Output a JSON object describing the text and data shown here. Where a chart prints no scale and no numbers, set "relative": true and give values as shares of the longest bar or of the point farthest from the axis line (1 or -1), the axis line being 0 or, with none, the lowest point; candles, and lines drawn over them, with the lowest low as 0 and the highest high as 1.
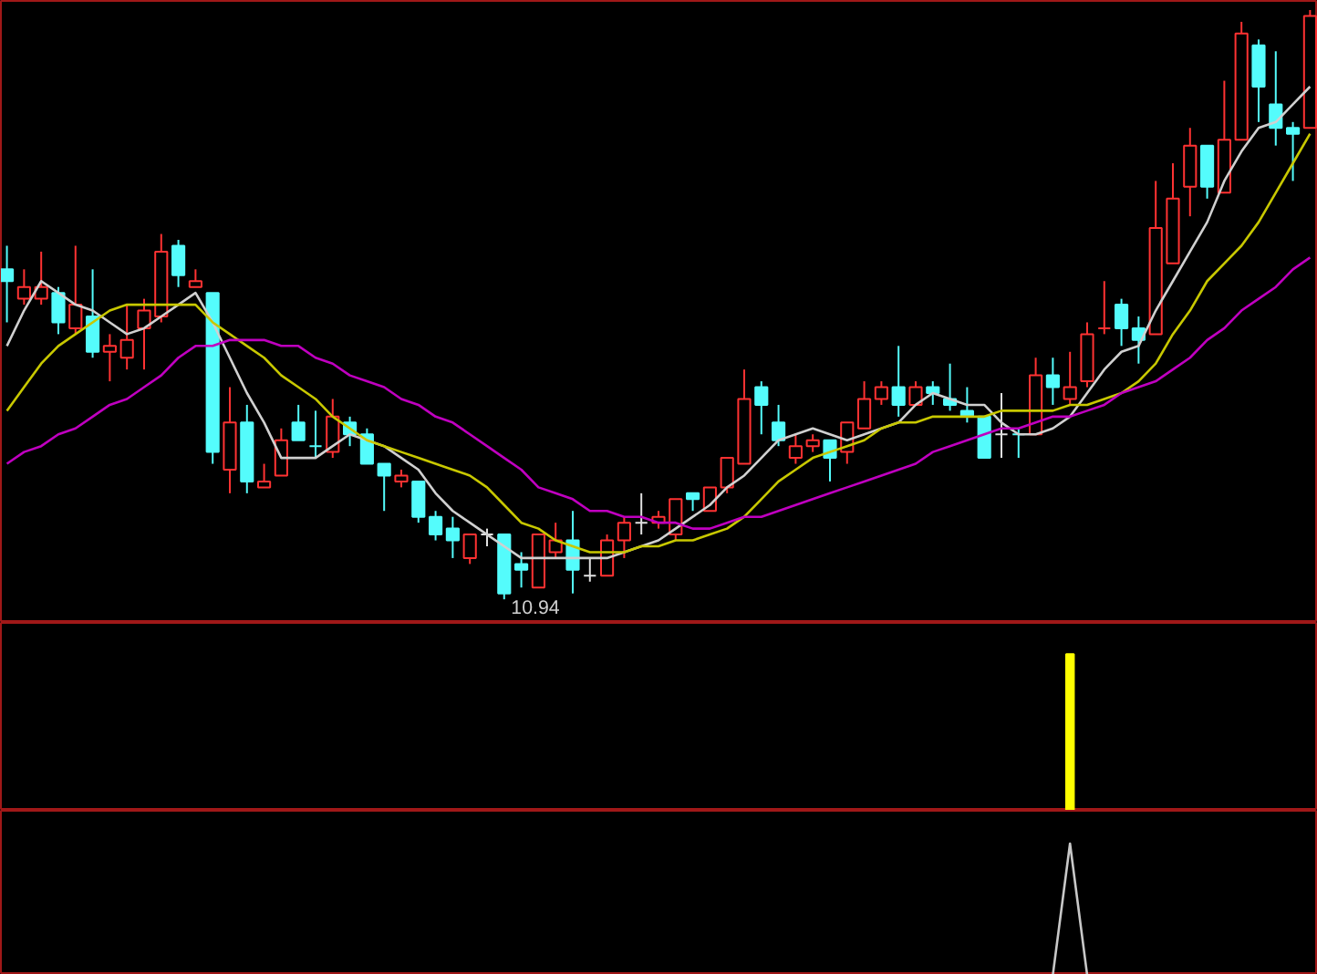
{
  "chart_data": [
    {
      "type": "candlestick",
      "relative": true,
      "colors": [
        "#54fcfc",
        "#ff3232",
        "#ff3232",
        "#54fcfc",
        "#ff3232",
        "#54fcfc",
        "#ff3232",
        "#ff3232",
        "#ff3232",
        "#ff3232",
        "#54fcfc",
        "#ff3232",
        "#54fcfc",
        "#ff3232",
        "#54fcfc",
        "#ff3232",
        "#ff3232",
        "#54fcfc",
        "#54fcfc",
        "#ff3232",
        "#54fcfc",
        "#54fcfc",
        "#54fcfc",
        "#ff3232",
        "#54fcfc",
        "#54fcfc",
        "#54fcfc",
        "#ff3232",
        "#e0e0e0",
        "#54fcfc",
        "#54fcfc",
        "#ff3232",
        "#ff3232",
        "#54fcfc",
        "#e0e0e0",
        "#ff3232",
        "#ff3232",
        "#e0e0e0",
        "#ff3232",
        "#ff3232",
        "#54fcfc",
        "#ff3232",
        "#ff3232",
        "#ff3232",
        "#54fcfc",
        "#54fcfc",
        "#ff3232",
        "#ff3232",
        "#54fcfc",
        "#ff3232",
        "#ff3232",
        "#ff3232",
        "#54fcfc",
        "#ff3232",
        "#54fcfc",
        "#54fcfc",
        "#54fcfc",
        "#54fcfc",
        "#e0e0e0",
        "#54fcfc",
        "#ff3232",
        "#54fcfc",
        "#ff3232",
        "#ff3232",
        "#ff3232",
        "#54fcfc",
        "#54fcfc",
        "#ff3232",
        "#ff3232",
        "#ff3232",
        "#54fcfc",
        "#ff3232",
        "#ff3232",
        "#54fcfc",
        "#54fcfc",
        "#54fcfc",
        "#ff3232"
      ],
      "categories": [
        null,
        null,
        null,
        null,
        null,
        null,
        null,
        null,
        null,
        null,
        null,
        null,
        null,
        null,
        null,
        null,
        null,
        null,
        null,
        null,
        null,
        null,
        null,
        null,
        null,
        null,
        null,
        null,
        null,
        null,
        null,
        null,
        null,
        null,
        null,
        null,
        null,
        null,
        null,
        null,
        null,
        null,
        null,
        null,
        null,
        null,
        null,
        null,
        null,
        null,
        null,
        null,
        null,
        null,
        null,
        null,
        null,
        null,
        null,
        null,
        null,
        null,
        null,
        null,
        null,
        null,
        null,
        null,
        null,
        null,
        null,
        null,
        null,
        null,
        null,
        null,
        null
      ],
      "ohlc": [
        [
          0.56,
          0.6,
          0.47,
          0.54
        ],
        [
          0.51,
          0.56,
          0.5,
          0.53
        ],
        [
          0.51,
          0.59,
          0.5,
          0.53
        ],
        [
          0.52,
          0.53,
          0.45,
          0.47
        ],
        [
          0.46,
          0.6,
          0.45,
          0.5
        ],
        [
          0.48,
          0.56,
          0.41,
          0.42
        ],
        [
          0.42,
          0.45,
          0.37,
          0.43
        ],
        [
          0.41,
          0.5,
          0.39,
          0.44
        ],
        [
          0.46,
          0.51,
          0.39,
          0.49
        ],
        [
          0.48,
          0.62,
          0.47,
          0.59
        ],
        [
          0.6,
          0.61,
          0.53,
          0.55
        ],
        [
          0.53,
          0.56,
          0.53,
          0.54
        ],
        [
          0.52,
          0.52,
          0.23,
          0.25
        ],
        [
          0.22,
          0.36,
          0.18,
          0.3
        ],
        [
          0.3,
          0.33,
          0.18,
          0.2
        ],
        [
          0.19,
          0.23,
          0.19,
          0.2
        ],
        [
          0.21,
          0.29,
          0.21,
          0.27
        ],
        [
          0.3,
          0.33,
          0.27,
          0.27
        ],
        [
          0.26,
          0.32,
          0.24,
          0.26
        ],
        [
          0.25,
          0.34,
          0.24,
          0.31
        ],
        [
          0.3,
          0.31,
          0.26,
          0.28
        ],
        [
          0.28,
          0.29,
          0.23,
          0.23
        ],
        [
          0.23,
          0.23,
          0.15,
          0.21
        ],
        [
          0.2,
          0.22,
          0.19,
          0.21
        ],
        [
          0.2,
          0.2,
          0.13,
          0.14
        ],
        [
          0.14,
          0.15,
          0.1,
          0.11
        ],
        [
          0.12,
          0.14,
          0.07,
          0.1
        ],
        [
          0.07,
          0.11,
          0.06,
          0.11
        ],
        [
          0.11,
          0.12,
          0.09,
          0.11
        ],
        [
          0.11,
          0.11,
          0.0,
          0.01
        ],
        [
          0.06,
          0.08,
          0.02,
          0.05
        ],
        [
          0.02,
          0.11,
          0.02,
          0.11
        ],
        [
          0.08,
          0.13,
          0.07,
          0.1
        ],
        [
          0.1,
          0.15,
          0.01,
          0.05
        ],
        [
          0.04,
          0.07,
          0.03,
          0.04
        ],
        [
          0.04,
          0.11,
          0.04,
          0.1
        ],
        [
          0.1,
          0.14,
          0.07,
          0.13
        ],
        [
          0.13,
          0.18,
          0.11,
          0.13
        ],
        [
          0.13,
          0.15,
          0.12,
          0.14
        ],
        [
          0.11,
          0.17,
          0.1,
          0.17
        ],
        [
          0.18,
          0.18,
          0.15,
          0.17
        ],
        [
          0.15,
          0.19,
          0.15,
          0.19
        ],
        [
          0.19,
          0.24,
          0.18,
          0.24
        ],
        [
          0.23,
          0.39,
          0.23,
          0.34
        ],
        [
          0.36,
          0.37,
          0.28,
          0.33
        ],
        [
          0.3,
          0.33,
          0.26,
          0.27
        ],
        [
          0.24,
          0.28,
          0.23,
          0.26
        ],
        [
          0.26,
          0.28,
          0.25,
          0.27
        ],
        [
          0.27,
          0.27,
          0.2,
          0.24
        ],
        [
          0.25,
          0.3,
          0.23,
          0.3
        ],
        [
          0.29,
          0.37,
          0.29,
          0.34
        ],
        [
          0.34,
          0.37,
          0.33,
          0.36
        ],
        [
          0.36,
          0.43,
          0.31,
          0.33
        ],
        [
          0.33,
          0.37,
          0.33,
          0.36
        ],
        [
          0.36,
          0.37,
          0.33,
          0.35
        ],
        [
          0.34,
          0.4,
          0.32,
          0.33
        ],
        [
          0.32,
          0.36,
          0.3,
          0.31
        ],
        [
          0.31,
          0.31,
          0.24,
          0.24
        ],
        [
          0.28,
          0.35,
          0.24,
          0.28
        ],
        [
          0.28,
          0.29,
          0.24,
          0.28
        ],
        [
          0.28,
          0.41,
          0.28,
          0.38
        ],
        [
          0.38,
          0.41,
          0.33,
          0.36
        ],
        [
          0.34,
          0.42,
          0.33,
          0.36
        ],
        [
          0.37,
          0.47,
          0.36,
          0.45
        ],
        [
          0.46,
          0.54,
          0.45,
          0.46
        ],
        [
          0.5,
          0.51,
          0.43,
          0.46
        ],
        [
          0.46,
          0.48,
          0.4,
          0.44
        ],
        [
          0.45,
          0.71,
          0.45,
          0.63
        ],
        [
          0.57,
          0.74,
          0.57,
          0.68
        ],
        [
          0.7,
          0.8,
          0.65,
          0.77
        ],
        [
          0.77,
          0.77,
          0.68,
          0.7
        ],
        [
          0.69,
          0.88,
          0.69,
          0.78
        ],
        [
          0.78,
          0.98,
          0.78,
          0.96
        ],
        [
          0.94,
          0.95,
          0.81,
          0.87
        ],
        [
          0.84,
          0.93,
          0.77,
          0.8
        ],
        [
          0.8,
          0.81,
          0.71,
          0.79
        ],
        [
          0.8,
          1.0,
          0.8,
          0.99
        ]
      ],
      "series": [
        {
          "type": "line",
          "color": "#d0d0d0",
          "values": [
            0.43,
            0.49,
            0.54,
            0.52,
            0.5,
            0.49,
            0.47,
            0.45,
            0.46,
            0.48,
            0.5,
            0.52,
            0.47,
            0.41,
            0.35,
            0.3,
            0.24,
            0.24,
            0.24,
            0.26,
            0.28,
            0.27,
            0.26,
            0.24,
            0.22,
            0.18,
            0.15,
            0.13,
            0.11,
            0.09,
            0.07,
            0.07,
            0.07,
            0.07,
            0.07,
            0.07,
            0.08,
            0.09,
            0.1,
            0.12,
            0.14,
            0.16,
            0.19,
            0.21,
            0.24,
            0.27,
            0.28,
            0.29,
            0.28,
            0.27,
            0.28,
            0.29,
            0.3,
            0.33,
            0.35,
            0.34,
            0.33,
            0.33,
            0.3,
            0.28,
            0.28,
            0.29,
            0.31,
            0.35,
            0.39,
            0.42,
            0.43,
            0.49,
            0.54,
            0.59,
            0.64,
            0.71,
            0.76,
            0.8,
            0.81,
            0.84,
            0.87
          ]
        },
        {
          "type": "line",
          "color": "#c8c800",
          "values": [
            0.32,
            0.36,
            0.4,
            0.43,
            0.45,
            0.47,
            0.49,
            0.5,
            0.5,
            0.5,
            0.5,
            0.5,
            0.47,
            0.45,
            0.43,
            0.41,
            0.38,
            0.36,
            0.34,
            0.31,
            0.29,
            0.27,
            0.26,
            0.25,
            0.24,
            0.23,
            0.22,
            0.21,
            0.19,
            0.16,
            0.13,
            0.12,
            0.1,
            0.09,
            0.08,
            0.08,
            0.08,
            0.09,
            0.09,
            0.1,
            0.1,
            0.11,
            0.12,
            0.14,
            0.17,
            0.2,
            0.22,
            0.24,
            0.25,
            0.26,
            0.27,
            0.29,
            0.3,
            0.3,
            0.31,
            0.31,
            0.31,
            0.31,
            0.32,
            0.32,
            0.32,
            0.32,
            0.33,
            0.33,
            0.34,
            0.35,
            0.37,
            0.4,
            0.45,
            0.49,
            0.54,
            0.57,
            0.6,
            0.64,
            0.69,
            0.74,
            0.79
          ]
        },
        {
          "type": "line",
          "color": "#c000c0",
          "values": [
            0.23,
            0.25,
            0.26,
            0.28,
            0.29,
            0.31,
            0.33,
            0.34,
            0.36,
            0.38,
            0.41,
            0.43,
            0.43,
            0.44,
            0.44,
            0.44,
            0.43,
            0.43,
            0.41,
            0.4,
            0.38,
            0.37,
            0.36,
            0.34,
            0.33,
            0.31,
            0.3,
            0.28,
            0.26,
            0.24,
            0.22,
            0.19,
            0.18,
            0.17,
            0.15,
            0.15,
            0.14,
            0.14,
            0.13,
            0.13,
            0.12,
            0.12,
            0.13,
            0.14,
            0.14,
            0.15,
            0.16,
            0.17,
            0.18,
            0.19,
            0.2,
            0.21,
            0.22,
            0.23,
            0.25,
            0.26,
            0.27,
            0.28,
            0.29,
            0.29,
            0.3,
            0.31,
            0.31,
            0.32,
            0.33,
            0.35,
            0.36,
            0.37,
            0.39,
            0.41,
            0.44,
            0.46,
            0.49,
            0.51,
            0.53,
            0.56,
            0.58
          ]
        }
      ],
      "annotations": [
        "10.94"
      ]
    },
    {
      "type": "bar",
      "relative": true,
      "color": "#ffff00",
      "categories": [
        null,
        null,
        null,
        null,
        null,
        null,
        null,
        null,
        null,
        null,
        null,
        null,
        null,
        null,
        null,
        null,
        null,
        null,
        null,
        null,
        null,
        null,
        null,
        null,
        null,
        null,
        null,
        null,
        null,
        null,
        null,
        null,
        null,
        null,
        null,
        null,
        null,
        null,
        null,
        null,
        null,
        null,
        null,
        null,
        null,
        null,
        null,
        null,
        null,
        null,
        null,
        null,
        null,
        null,
        null,
        null,
        null,
        null,
        null,
        null,
        null,
        null,
        null,
        null,
        null,
        null,
        null,
        null,
        null,
        null,
        null,
        null,
        null,
        null,
        null,
        null,
        null
      ],
      "values": [
        null,
        null,
        null,
        null,
        null,
        null,
        null,
        null,
        null,
        null,
        null,
        null,
        null,
        null,
        null,
        null,
        null,
        null,
        null,
        null,
        null,
        null,
        null,
        null,
        null,
        null,
        null,
        null,
        null,
        null,
        null,
        null,
        null,
        null,
        null,
        null,
        null,
        null,
        null,
        null,
        null,
        null,
        null,
        null,
        null,
        null,
        null,
        null,
        null,
        null,
        null,
        null,
        null,
        null,
        null,
        null,
        null,
        null,
        null,
        null,
        null,
        null,
        1,
        null,
        null,
        null,
        null,
        null,
        null,
        null,
        null,
        null,
        null,
        null,
        null,
        null,
        null
      ]
    },
    {
      "type": "line",
      "relative": true,
      "color": "#c8c8c8",
      "categories": [
        null,
        null,
        null,
        null,
        null,
        null,
        null,
        null,
        null,
        null,
        null,
        null,
        null,
        null,
        null,
        null,
        null,
        null,
        null,
        null,
        null,
        null,
        null,
        null,
        null,
        null,
        null,
        null,
        null,
        null,
        null,
        null,
        null,
        null,
        null,
        null,
        null,
        null,
        null,
        null,
        null,
        null,
        null,
        null,
        null,
        null,
        null,
        null,
        null,
        null,
        null,
        null,
        null,
        null,
        null,
        null,
        null,
        null,
        null,
        null,
        null,
        null,
        null,
        null,
        null,
        null,
        null,
        null,
        null,
        null,
        null,
        null,
        null,
        null,
        null,
        null,
        null
      ],
      "values": [
        null,
        null,
        null,
        null,
        null,
        null,
        null,
        null,
        null,
        null,
        null,
        null,
        null,
        null,
        null,
        null,
        null,
        null,
        null,
        null,
        null,
        null,
        null,
        null,
        null,
        null,
        null,
        null,
        null,
        null,
        null,
        null,
        null,
        null,
        null,
        null,
        null,
        null,
        null,
        null,
        null,
        null,
        null,
        null,
        null,
        null,
        null,
        null,
        null,
        null,
        null,
        null,
        null,
        null,
        null,
        null,
        null,
        null,
        null,
        null,
        null,
        0,
        1,
        0,
        null,
        null,
        null,
        null,
        null,
        null,
        null,
        null,
        null,
        null,
        null,
        null,
        null
      ]
    }
  ]
}
